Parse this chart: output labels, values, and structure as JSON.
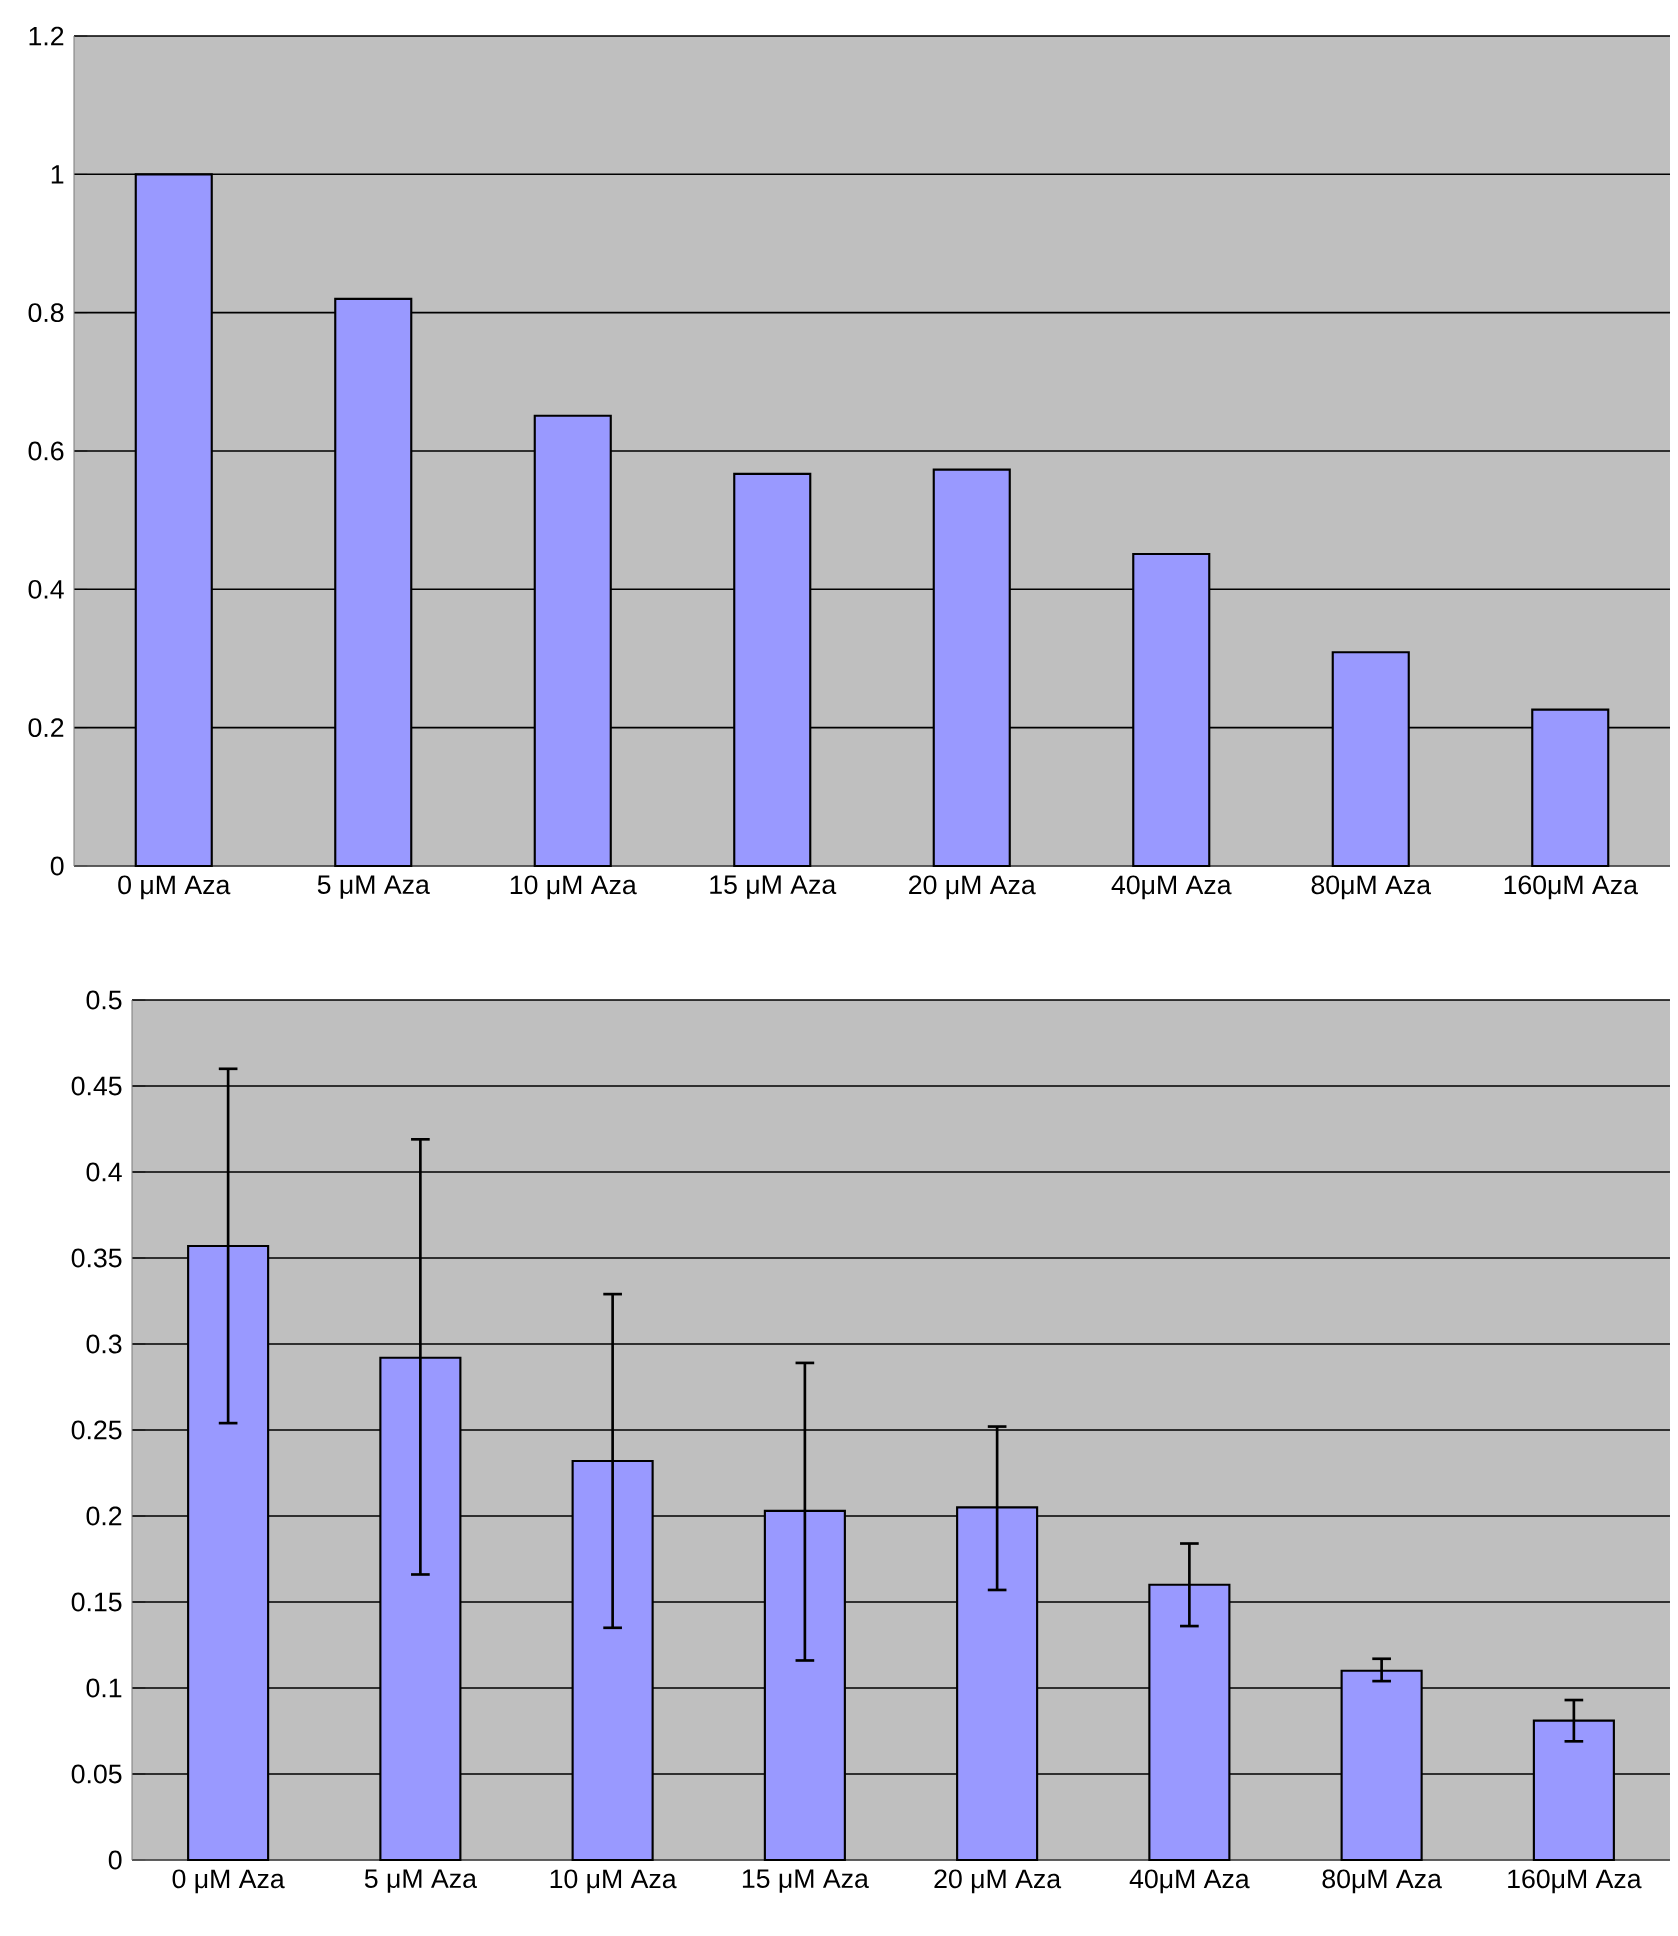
{
  "chart_data": [
    {
      "type": "bar",
      "categories": [
        "0 μM  Aza",
        "5 μM  Aza",
        "10 μM Aza",
        "15 μM Aza",
        "20 μM Aza",
        "40μM Aza",
        "80μM Aza",
        "160μM Aza"
      ],
      "values": [
        1.0,
        0.82,
        0.651,
        0.567,
        0.573,
        0.451,
        0.309,
        0.226
      ],
      "color": "#9999ff",
      "ylim": [
        0,
        1.2
      ],
      "yticks": [
        0,
        0.2,
        0.4,
        0.6,
        0.8,
        1,
        1.2
      ],
      "grid": "y"
    },
    {
      "type": "bar",
      "categories": [
        "0 μM  Aza",
        "5 μM  Aza",
        "10 μM Aza",
        "15 μM Aza",
        "20 μM Aza",
        "40μM Aza",
        "80μM Aza",
        "160μM Aza"
      ],
      "values": [
        0.357,
        0.292,
        0.232,
        0.203,
        0.205,
        0.16,
        0.11,
        0.081
      ],
      "errors": [
        [
          0.254,
          0.46
        ],
        [
          0.166,
          0.419
        ],
        [
          0.135,
          0.329
        ],
        [
          0.116,
          0.289
        ],
        [
          0.157,
          0.252
        ],
        [
          0.136,
          0.184
        ],
        [
          0.104,
          0.117
        ],
        [
          0.069,
          0.093
        ]
      ],
      "color": "#9999ff",
      "ylim": [
        0,
        0.5
      ],
      "yticks": [
        0,
        0.05,
        0.1,
        0.15,
        0.2,
        0.25,
        0.3,
        0.35,
        0.4,
        0.45,
        0.5
      ],
      "grid": "y"
    }
  ]
}
